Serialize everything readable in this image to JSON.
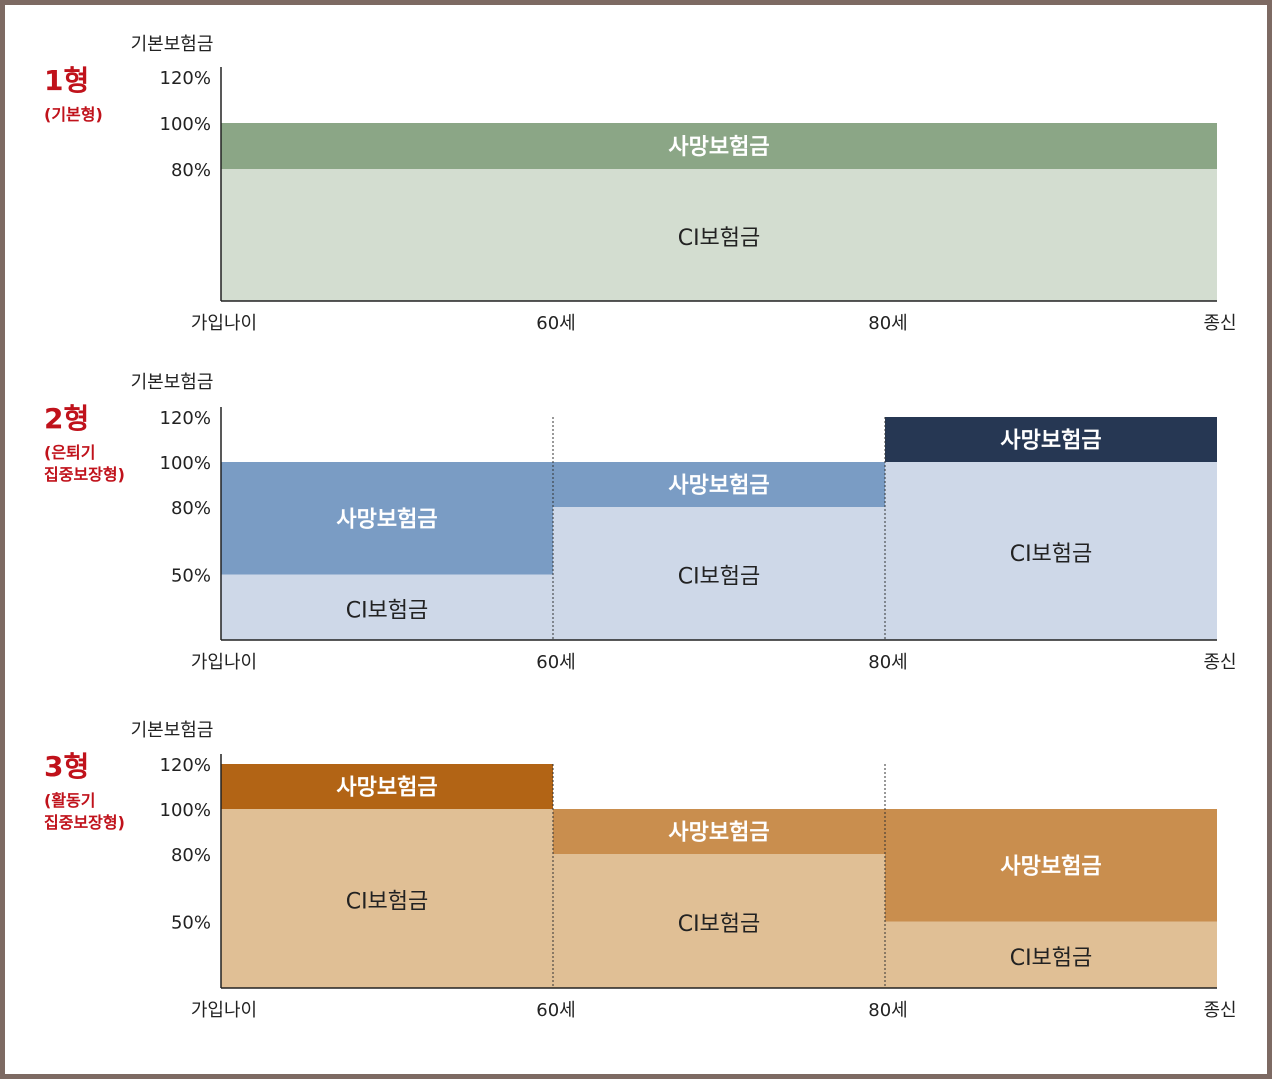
{
  "chart_data": [
    {
      "type": "stacked-bar",
      "type_label": "1형",
      "type_sublabel": [
        "(기본형)"
      ],
      "ylabel": "기본보험금",
      "y_ticks": [
        "120%",
        "100%",
        "80%"
      ],
      "x_ticks": [
        "가입나이",
        "60세",
        "80세",
        "종신"
      ],
      "grid": false,
      "segments": [
        {
          "x_range": [
            "가입나이",
            "종신"
          ],
          "ci_pct": 80,
          "death_pct": 20,
          "ci_label": "CI보험금",
          "death_label": "사망보험금"
        }
      ],
      "colors": {
        "ci": "#d3ddd0",
        "death": "#8ba686"
      }
    },
    {
      "type": "stacked-bar",
      "type_label": "2형",
      "type_sublabel": [
        "(은퇴기",
        "집중보장형)"
      ],
      "ylabel": "기본보험금",
      "y_ticks": [
        "120%",
        "100%",
        "80%",
        "50%"
      ],
      "x_ticks": [
        "가입나이",
        "60세",
        "80세",
        "종신"
      ],
      "grid": false,
      "segments": [
        {
          "x_range": [
            "가입나이",
            "60세"
          ],
          "ci_pct": 50,
          "death_pct": 50,
          "ci_label": "CI보험금",
          "death_label": "사망보험금"
        },
        {
          "x_range": [
            "60세",
            "80세"
          ],
          "ci_pct": 80,
          "death_pct": 20,
          "ci_label": "CI보험금",
          "death_label": "사망보험금"
        },
        {
          "x_range": [
            "80세",
            "종신"
          ],
          "ci_pct": 100,
          "death_pct": 20,
          "ci_label": "CI보험금",
          "death_label": "사망보험금"
        }
      ],
      "colors": {
        "ci": "#ced8e8",
        "death_early": "#7a9cc4",
        "death_late": "#263753"
      }
    },
    {
      "type": "stacked-bar",
      "type_label": "3형",
      "type_sublabel": [
        "(활동기",
        "집중보장형)"
      ],
      "ylabel": "기본보험금",
      "y_ticks": [
        "120%",
        "100%",
        "80%",
        "50%"
      ],
      "x_ticks": [
        "가입나이",
        "60세",
        "80세",
        "종신"
      ],
      "grid": false,
      "segments": [
        {
          "x_range": [
            "가입나이",
            "60세"
          ],
          "ci_pct": 100,
          "death_pct": 20,
          "ci_label": "CI보험금",
          "death_label": "사망보험금"
        },
        {
          "x_range": [
            "60세",
            "80세"
          ],
          "ci_pct": 80,
          "death_pct": 20,
          "ci_label": "CI보험금",
          "death_label": "사망보험금"
        },
        {
          "x_range": [
            "80세",
            "종신"
          ],
          "ci_pct": 50,
          "death_pct": 50,
          "ci_label": "CI보험금",
          "death_label": "사망보험금"
        }
      ],
      "colors": {
        "ci": "#e0bf95",
        "death_first": "#b26415",
        "death": "#c98e4e"
      }
    }
  ],
  "colors": {
    "type_label": "#c0121b",
    "frame": "#7d6a63",
    "axis": "#222222",
    "text": "#222222"
  }
}
